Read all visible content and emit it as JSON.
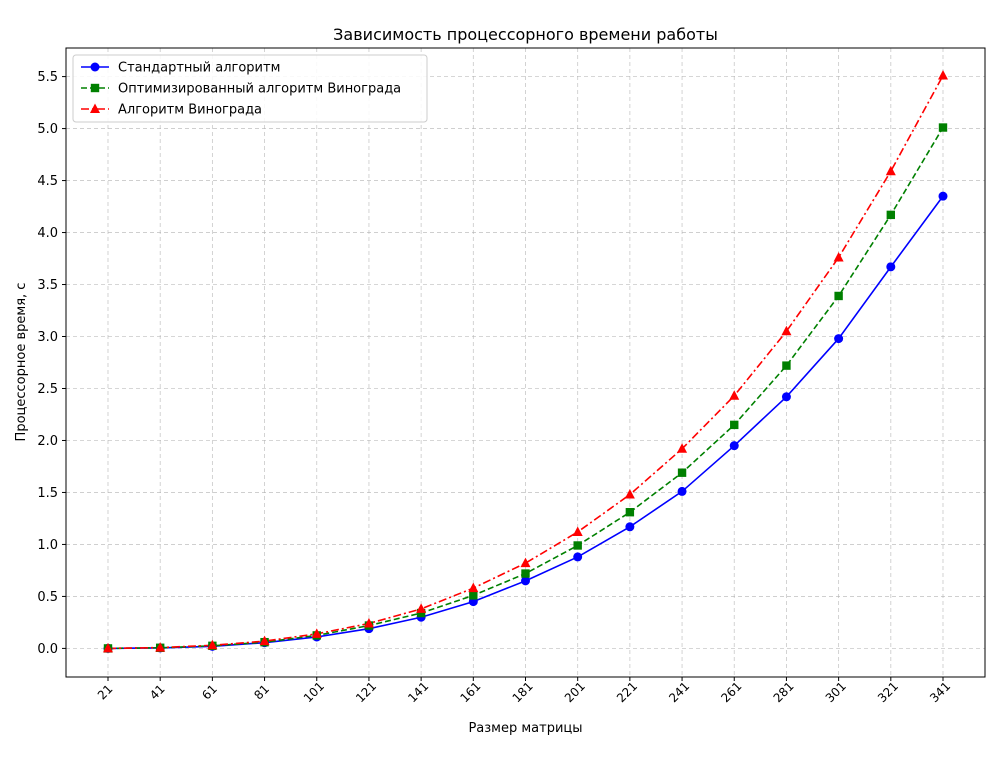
{
  "chart_data": {
    "type": "line",
    "title": "Зависимость процессорного времени работы",
    "xlabel": "Размер матрицы",
    "ylabel": "Процессорное время, с",
    "categories": [
      "21",
      "41",
      "61",
      "81",
      "101",
      "121",
      "141",
      "161",
      "181",
      "201",
      "221",
      "241",
      "261",
      "281",
      "301",
      "321",
      "341"
    ],
    "ylim": [
      -0.275,
      5.775
    ],
    "yticks": [
      "0.0",
      "0.5",
      "1.0",
      "1.5",
      "2.0",
      "2.5",
      "3.0",
      "3.5",
      "4.0",
      "4.5",
      "5.0",
      "5.5"
    ],
    "grid": true,
    "legend_position": "top-left",
    "series": [
      {
        "name": "Стандартный алгоритм",
        "color": "#0000ff",
        "marker": "circle",
        "linestyle": "solid",
        "values": [
          0.0,
          0.005,
          0.02,
          0.055,
          0.11,
          0.19,
          0.3,
          0.45,
          0.65,
          0.88,
          1.17,
          1.51,
          1.95,
          2.42,
          2.98,
          3.67,
          4.35
        ]
      },
      {
        "name": "Оптимизированный алгоритм Винограда",
        "color": "#008000",
        "marker": "square",
        "linestyle": "dashed",
        "values": [
          0.0,
          0.006,
          0.025,
          0.06,
          0.125,
          0.22,
          0.34,
          0.51,
          0.72,
          0.99,
          1.31,
          1.69,
          2.15,
          2.72,
          3.39,
          4.17,
          5.01
        ]
      },
      {
        "name": "Алгоритм Винограда",
        "color": "#ff0000",
        "marker": "triangle",
        "linestyle": "dashdot",
        "values": [
          0.0,
          0.008,
          0.03,
          0.07,
          0.14,
          0.24,
          0.38,
          0.58,
          0.82,
          1.12,
          1.48,
          1.92,
          2.43,
          3.05,
          3.76,
          4.59,
          5.51
        ]
      }
    ]
  }
}
